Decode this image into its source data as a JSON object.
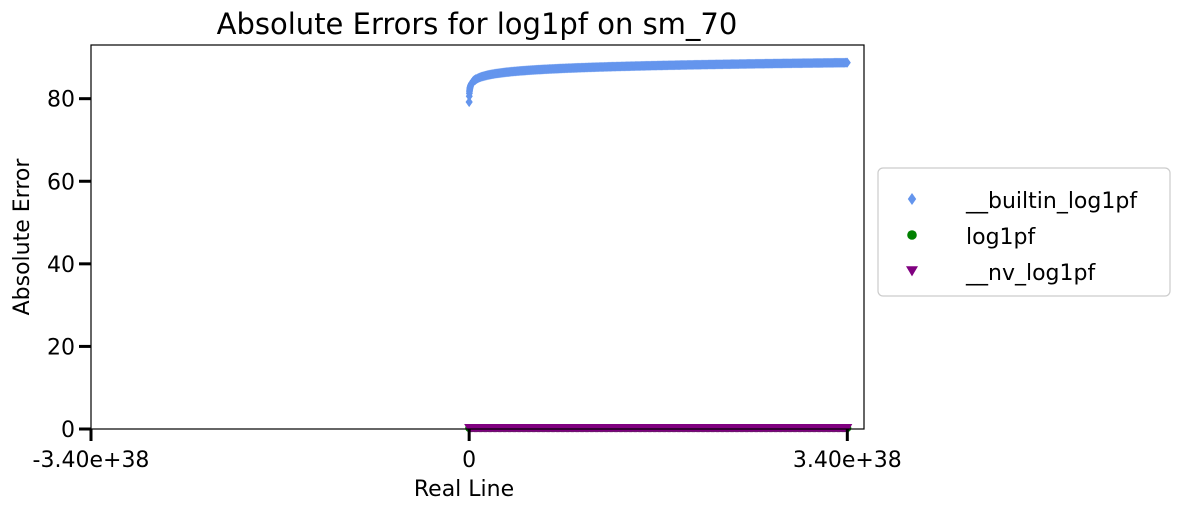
{
  "chart_data": {
    "type": "scatter",
    "title": "Absolute Errors for log1pf on sm_70",
    "xlabel": "Real Line",
    "ylabel": "Absolute Error",
    "x_tick_labels": [
      "-3.40e+38",
      "0",
      "3.40e+38"
    ],
    "x_ticks": [
      -3.4e+38,
      0,
      3.4e+38
    ],
    "y_ticks": [
      0,
      20,
      40,
      60,
      80
    ],
    "xlim": [
      -3.4e+38,
      3.55e+38
    ],
    "ylim": [
      0,
      93
    ],
    "grid": false,
    "legend_position": "center-right, outside plot",
    "series": [
      {
        "name": "__builtin_log1pf",
        "marker": "diamond",
        "color": "#6495ed",
        "x_range": [
          0,
          3.4e+38
        ],
        "y_description": "log1p(x) curve: ~79.5 near x=0 rising to ~88.7 at x=3.40e+38",
        "sample_x": [
          0,
          1e+36,
          5e+36,
          2e+37,
          5e+37,
          1e+38,
          2e+38,
          3.4e+38
        ],
        "sample_y": [
          79.5,
          82.9,
          84.5,
          85.9,
          86.8,
          87.5,
          88.2,
          88.7
        ]
      },
      {
        "name": "log1pf",
        "marker": "circle",
        "color": "#008000",
        "x_range": [
          0,
          3.4e+38
        ],
        "y_value": 0
      },
      {
        "name": "__nv_log1pf",
        "marker": "triangle-down",
        "color": "#800080",
        "x_range": [
          0,
          3.4e+38
        ],
        "y_value": 0
      }
    ]
  }
}
